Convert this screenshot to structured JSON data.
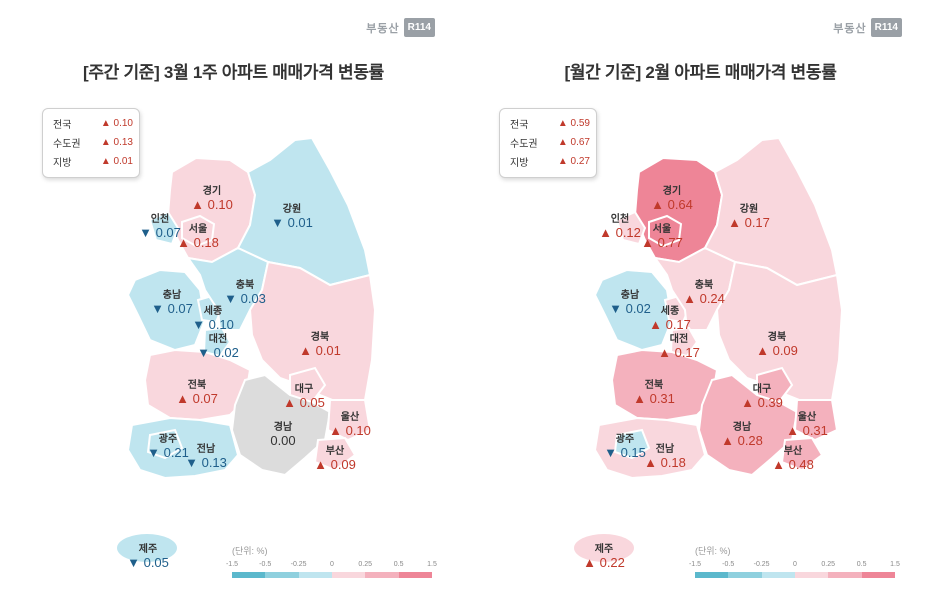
{
  "logo": {
    "text": "부동산",
    "box": "R114"
  },
  "colors": {
    "up": "#c0392b",
    "down": "#1f5f8b",
    "scale": [
      "#5bb8cc",
      "#8fd0de",
      "#bfe5ef",
      "#f9d7dd",
      "#f4b1bd",
      "#ee8597"
    ]
  },
  "left": {
    "title": "[주간 기준] 3월 1주 아파트 매매가격 변동률",
    "summary": [
      {
        "label": "전국",
        "value": "▲ 0.10"
      },
      {
        "label": "수도권",
        "value": "▲ 0.13"
      },
      {
        "label": "지방",
        "value": "▲ 0.01"
      }
    ],
    "regions": [
      {
        "name": "경기",
        "value": "▲ 0.10",
        "dir": "up"
      },
      {
        "name": "인천",
        "value": "▼ 0.07",
        "dir": "down"
      },
      {
        "name": "서울",
        "value": "▲ 0.18",
        "dir": "up"
      },
      {
        "name": "강원",
        "value": "▼ 0.01",
        "dir": "down"
      },
      {
        "name": "충북",
        "value": "▼ 0.03",
        "dir": "down"
      },
      {
        "name": "충남",
        "value": "▼ 0.07",
        "dir": "down"
      },
      {
        "name": "세종",
        "value": "▼ 0.10",
        "dir": "down"
      },
      {
        "name": "대전",
        "value": "▼ 0.02",
        "dir": "down"
      },
      {
        "name": "경북",
        "value": "▲ 0.01",
        "dir": "up"
      },
      {
        "name": "전북",
        "value": "▲ 0.07",
        "dir": "up"
      },
      {
        "name": "대구",
        "value": "▲ 0.05",
        "dir": "up"
      },
      {
        "name": "울산",
        "value": "▲ 0.10",
        "dir": "up"
      },
      {
        "name": "경남",
        "value": "0.00",
        "dir": "zero"
      },
      {
        "name": "광주",
        "value": "▼ 0.21",
        "dir": "down"
      },
      {
        "name": "전남",
        "value": "▼ 0.13",
        "dir": "down"
      },
      {
        "name": "부산",
        "value": "▲ 0.09",
        "dir": "up"
      },
      {
        "name": "제주",
        "value": "▼ 0.05",
        "dir": "down"
      }
    ],
    "legend_unit": "(단위: %)",
    "legend_ticks": [
      "-1.5",
      "-0.5",
      "-0.25",
      "0",
      "0.25",
      "0.5",
      "1.5"
    ]
  },
  "right": {
    "title": "[월간 기준] 2월 아파트 매매가격 변동률",
    "summary": [
      {
        "label": "전국",
        "value": "▲ 0.59"
      },
      {
        "label": "수도권",
        "value": "▲ 0.67"
      },
      {
        "label": "지방",
        "value": "▲ 0.27"
      }
    ],
    "regions": [
      {
        "name": "경기",
        "value": "▲ 0.64",
        "dir": "up"
      },
      {
        "name": "인천",
        "value": "▲ 0.12",
        "dir": "up"
      },
      {
        "name": "서울",
        "value": "▲ 0.77",
        "dir": "up"
      },
      {
        "name": "강원",
        "value": "▲ 0.17",
        "dir": "up"
      },
      {
        "name": "충북",
        "value": "▲ 0.24",
        "dir": "up"
      },
      {
        "name": "충남",
        "value": "▼ 0.02",
        "dir": "down"
      },
      {
        "name": "세종",
        "value": "▲ 0.17",
        "dir": "up"
      },
      {
        "name": "대전",
        "value": "▲ 0.17",
        "dir": "up"
      },
      {
        "name": "경북",
        "value": "▲ 0.09",
        "dir": "up"
      },
      {
        "name": "전북",
        "value": "▲ 0.31",
        "dir": "up"
      },
      {
        "name": "대구",
        "value": "▲ 0.39",
        "dir": "up"
      },
      {
        "name": "울산",
        "value": "▲ 0.31",
        "dir": "up"
      },
      {
        "name": "경남",
        "value": "▲ 0.28",
        "dir": "up"
      },
      {
        "name": "광주",
        "value": "▼ 0.15",
        "dir": "down"
      },
      {
        "name": "전남",
        "value": "▲ 0.18",
        "dir": "up"
      },
      {
        "name": "부산",
        "value": "▲ 0.48",
        "dir": "up"
      },
      {
        "name": "제주",
        "value": "▲ 0.22",
        "dir": "up"
      }
    ],
    "legend_unit": "(단위: %)",
    "legend_ticks": [
      "-1.5",
      "-0.5",
      "-0.25",
      "0",
      "0.25",
      "0.5",
      "1.5"
    ]
  }
}
